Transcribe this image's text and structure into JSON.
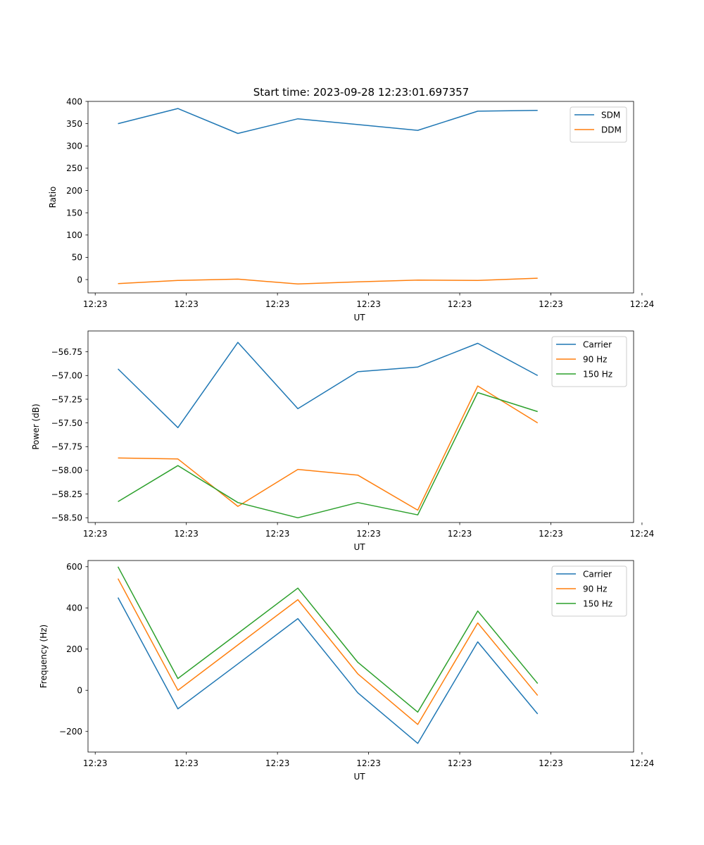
{
  "figure_title": "Start time: 2023-09-28 12:23:01.697357",
  "chart_data": [
    {
      "type": "line",
      "title": "Start time: 2023-09-28 12:23:01.697357",
      "xlabel": "UT",
      "ylabel": "Ratio",
      "x_index": [
        0,
        1,
        2,
        3,
        4,
        5,
        6,
        7
      ],
      "xlim": [
        -0.5,
        8.6
      ],
      "x_ticks": [
        -0.38,
        1.14,
        2.66,
        4.18,
        5.7,
        7.22,
        8.74
      ],
      "x_tick_labels": [
        "12:23",
        "12:23",
        "12:23",
        "12:23",
        "12:23",
        "12:23",
        "12:24"
      ],
      "ylim": [
        -30,
        400
      ],
      "y_ticks": [
        0,
        50,
        100,
        150,
        200,
        250,
        300,
        350,
        400
      ],
      "y_tick_labels": [
        "0",
        "50",
        "100",
        "150",
        "200",
        "250",
        "300",
        "350",
        "400"
      ],
      "legend_position": "top-right",
      "series": [
        {
          "name": "SDM",
          "color": "#1f77b4",
          "values": [
            350,
            384,
            328,
            361,
            348,
            335,
            378,
            380
          ]
        },
        {
          "name": "DDM",
          "color": "#ff7f0e",
          "values": [
            -9,
            -2,
            1,
            -10,
            -5,
            -1,
            -2,
            3
          ]
        }
      ]
    },
    {
      "type": "line",
      "xlabel": "UT",
      "ylabel": "Power (dB)",
      "x_index": [
        0,
        1,
        2,
        3,
        4,
        5,
        6,
        7
      ],
      "xlim": [
        -0.5,
        8.6
      ],
      "x_ticks": [
        -0.38,
        1.14,
        2.66,
        4.18,
        5.7,
        7.22,
        8.74
      ],
      "x_tick_labels": [
        "12:23",
        "12:23",
        "12:23",
        "12:23",
        "12:23",
        "12:23",
        "12:24"
      ],
      "ylim": [
        -58.55,
        -56.53
      ],
      "y_ticks": [
        -58.5,
        -58.25,
        -58.0,
        -57.75,
        -57.5,
        -57.25,
        -57.0,
        -56.75
      ],
      "y_tick_labels": [
        "−58.50",
        "−58.25",
        "−58.00",
        "−57.75",
        "−57.50",
        "−57.25",
        "−57.00",
        "−56.75"
      ],
      "legend_position": "top-right",
      "series": [
        {
          "name": "Carrier",
          "color": "#1f77b4",
          "values": [
            -56.93,
            -57.55,
            -56.65,
            -57.35,
            -56.96,
            -56.91,
            -56.66,
            -57.0
          ]
        },
        {
          "name": "90 Hz",
          "color": "#ff7f0e",
          "values": [
            -57.87,
            -57.88,
            -58.38,
            -57.99,
            -58.05,
            -58.42,
            -57.11,
            -57.5
          ]
        },
        {
          "name": "150 Hz",
          "color": "#2ca02c",
          "values": [
            -58.33,
            -57.95,
            -58.34,
            -58.5,
            -58.34,
            -58.47,
            -57.18,
            -57.38
          ]
        }
      ]
    },
    {
      "type": "line",
      "xlabel": "UT",
      "ylabel": "Frequency (Hz)",
      "x_index": [
        0,
        1,
        2,
        3,
        4,
        5,
        6,
        7
      ],
      "xlim": [
        -0.5,
        8.6
      ],
      "x_ticks": [
        -0.38,
        1.14,
        2.66,
        4.18,
        5.7,
        7.22,
        8.74
      ],
      "x_tick_labels": [
        "12:23",
        "12:23",
        "12:23",
        "12:23",
        "12:23",
        "12:23",
        "12:24"
      ],
      "ylim": [
        -300,
        630
      ],
      "y_ticks": [
        -200,
        0,
        200,
        400,
        600
      ],
      "y_tick_labels": [
        "−200",
        "0",
        "200",
        "400",
        "600"
      ],
      "legend_position": "top-right",
      "series": [
        {
          "name": "Carrier",
          "color": "#1f77b4",
          "values": [
            450,
            -90,
            128,
            348,
            -12,
            -258,
            235,
            -115
          ]
        },
        {
          "name": "90 Hz",
          "color": "#ff7f0e",
          "values": [
            542,
            0,
            220,
            440,
            80,
            -166,
            327,
            -25
          ]
        },
        {
          "name": "150 Hz",
          "color": "#2ca02c",
          "values": [
            600,
            57,
            276,
            496,
            136,
            -106,
            385,
            33
          ]
        }
      ]
    }
  ]
}
